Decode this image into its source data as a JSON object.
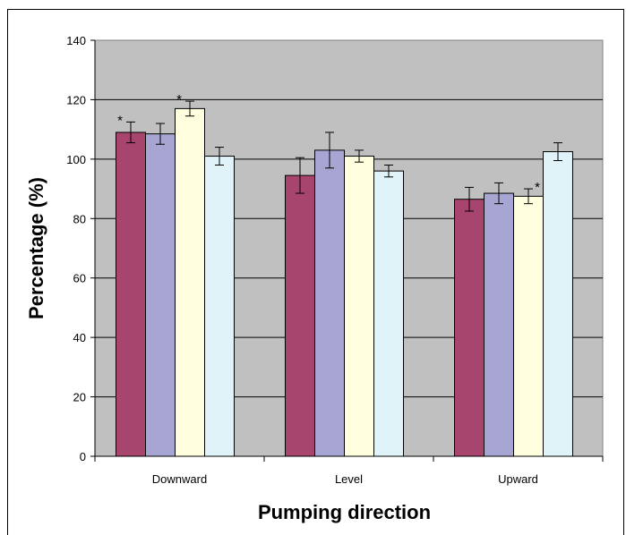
{
  "chart_data": {
    "type": "bar",
    "title": "",
    "xlabel": "Pumping direction",
    "ylabel": "Percentage (%)",
    "ylim": [
      0,
      140
    ],
    "yticks": [
      0,
      20,
      40,
      60,
      80,
      100,
      120,
      140
    ],
    "grid": true,
    "legend": "none",
    "categories": [
      "Downward",
      "Level",
      "Upward"
    ],
    "series": [
      {
        "color": "#a8456e",
        "values": [
          109,
          94.5,
          86.5
        ],
        "errors": [
          3.5,
          6,
          4
        ],
        "stars": [
          "*",
          "",
          ""
        ]
      },
      {
        "color": "#a7a6d3",
        "values": [
          108.5,
          103,
          88.5
        ],
        "errors": [
          3.5,
          6,
          3.5
        ],
        "stars": [
          "",
          "",
          ""
        ]
      },
      {
        "color": "#ffffe0",
        "values": [
          117,
          101,
          87.5
        ],
        "errors": [
          2.5,
          2,
          2.5
        ],
        "stars": [
          "*",
          "",
          "*"
        ]
      },
      {
        "color": "#dff3f8",
        "values": [
          101,
          96,
          102.5
        ],
        "errors": [
          3,
          2,
          3
        ],
        "stars": [
          "",
          "",
          ""
        ]
      }
    ]
  }
}
